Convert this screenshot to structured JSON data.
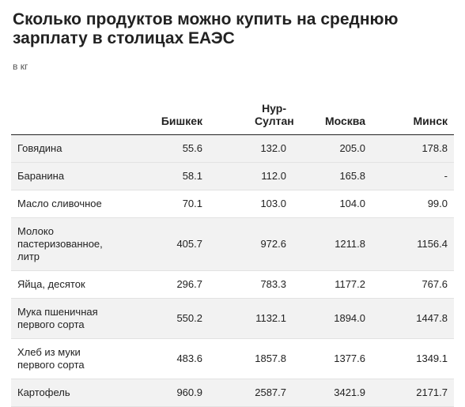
{
  "title": "Сколько продуктов можно купить на среднюю зарплату в столицах ЕАЭС",
  "subtitle": "в кг",
  "chart_data": {
    "type": "table",
    "title": "Сколько продуктов можно купить на среднюю зарплату в столицах ЕАЭС",
    "subtitle": "в кг",
    "columns": [
      "",
      "Бишкек",
      "Нур-Султан",
      "Москва",
      "Минск"
    ],
    "rows": [
      {
        "label": "Говядина",
        "values": [
          "55.6",
          "132.0",
          "205.0",
          "178.8"
        ]
      },
      {
        "label": "Баранина",
        "values": [
          "58.1",
          "112.0",
          "165.8",
          "-"
        ]
      },
      {
        "label": "Масло сливочное",
        "values": [
          "70.1",
          "103.0",
          "104.0",
          "99.0"
        ]
      },
      {
        "label": "Молоко пастеризованное, литр",
        "values": [
          "405.7",
          "972.6",
          "1211.8",
          "1156.4"
        ]
      },
      {
        "label": "Яйца, десяток",
        "values": [
          "296.7",
          "783.3",
          "1177.2",
          "767.6"
        ]
      },
      {
        "label": "Мука пшеничная первого сорта",
        "values": [
          "550.2",
          "1132.1",
          "1894.0",
          "1447.8"
        ]
      },
      {
        "label": "Хлеб из муки первого сорта",
        "values": [
          "483.6",
          "1857.8",
          "1377.6",
          "1349.1"
        ]
      },
      {
        "label": "Картофель",
        "values": [
          "960.9",
          "2587.7",
          "3421.9",
          "2171.7"
        ]
      }
    ]
  }
}
